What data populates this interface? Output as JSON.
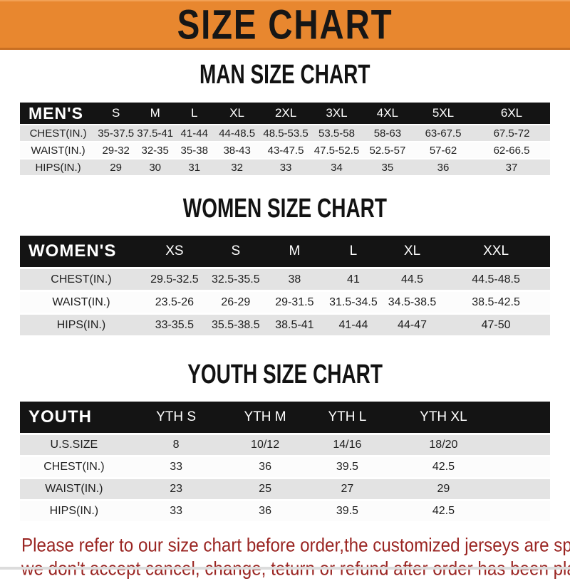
{
  "banner": {
    "title": "SIZE CHART"
  },
  "sections": [
    {
      "title": "MAN SIZE CHART",
      "header": [
        "MEN'S",
        "S",
        "M",
        "L",
        "XL",
        "2XL",
        "3XL",
        "4XL",
        "5XL",
        "6XL"
      ],
      "rows": [
        [
          "CHEST(IN.)",
          "35-37.5",
          "37.5-41",
          "41-44",
          "44-48.5",
          "48.5-53.5",
          "53.5-58",
          "58-63",
          "63-67.5",
          "67.5-72"
        ],
        [
          "WAIST(IN.)",
          "29-32",
          "32-35",
          "35-38",
          "38-43",
          "43-47.5",
          "47.5-52.5",
          "52.5-57",
          "57-62",
          "62-66.5"
        ],
        [
          "HIPS(IN.)",
          "29",
          "30",
          "31",
          "32",
          "33",
          "34",
          "35",
          "36",
          "37"
        ]
      ]
    },
    {
      "title": "WOMEN SIZE CHART",
      "header": [
        "WOMEN'S",
        "XS",
        "S",
        "M",
        "L",
        "XL",
        "XXL"
      ],
      "rows": [
        [
          "CHEST(IN.)",
          "29.5-32.5",
          "32.5-35.5",
          "38",
          "41",
          "44.5",
          "44.5-48.5"
        ],
        [
          "WAIST(IN.)",
          "23.5-26",
          "26-29",
          "29-31.5",
          "31.5-34.5",
          "34.5-38.5",
          "38.5-42.5"
        ],
        [
          "HIPS(IN.)",
          "33-35.5",
          "35.5-38.5",
          "38.5-41",
          "41-44",
          "44-47",
          "47-50"
        ]
      ]
    },
    {
      "title": "YOUTH SIZE CHART",
      "header": [
        "YOUTH",
        "YTH S",
        "YTH M",
        "YTH L",
        "YTH XL"
      ],
      "rows": [
        [
          "U.S.SIZE",
          "8",
          "10/12",
          "14/16",
          "18/20"
        ],
        [
          "CHEST(IN.)",
          "33",
          "36",
          "39.5",
          "42.5"
        ],
        [
          "WAIST(IN.)",
          "23",
          "25",
          "27",
          "29"
        ],
        [
          "HIPS(IN.)",
          "33",
          "36",
          "39.5",
          "42.5"
        ]
      ]
    }
  ],
  "footer": {
    "line1": "Please refer to our size chart before order,the customized jerseys are special products,",
    "line2": "we don't accept cancel, change, teturn or refund after order has been placed!"
  },
  "colors": {
    "banner_orange": "#E8872F",
    "table_header_black": "#141414",
    "row_gray": "#E3E3E3",
    "row_white": "#FCFCFC",
    "footer_red": "#9A2522"
  }
}
